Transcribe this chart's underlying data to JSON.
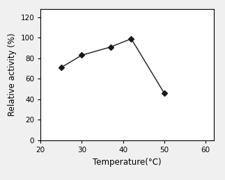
{
  "x": [
    25,
    30,
    37,
    42,
    50
  ],
  "y": [
    71,
    83,
    91,
    99,
    46
  ],
  "marker": "D",
  "marker_color": "#1a1a1a",
  "line_color": "#1a1a1a",
  "marker_size": 4,
  "line_width": 1.0,
  "xlabel": "Temperature(°C)",
  "ylabel": "Relative activity (%)",
  "xlim": [
    20,
    62
  ],
  "ylim": [
    0,
    128
  ],
  "xticks": [
    20,
    30,
    40,
    50,
    60
  ],
  "yticks": [
    0,
    20,
    40,
    60,
    80,
    100,
    120
  ],
  "xlabel_fontsize": 8.5,
  "ylabel_fontsize": 8.5,
  "tick_fontsize": 7.5,
  "background_color": "#f0f0f0"
}
